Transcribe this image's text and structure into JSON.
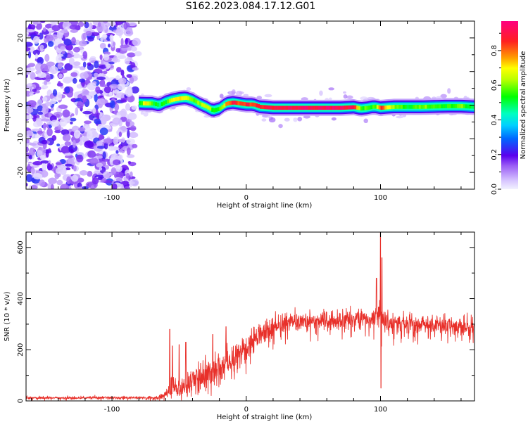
{
  "figure": {
    "title": "S162.2023.084.17.12.G01"
  },
  "colormap": [
    [
      0.0,
      "#f2f2ff"
    ],
    [
      0.05,
      "#d8c6ff"
    ],
    [
      0.14,
      "#9a5cf5"
    ],
    [
      0.2,
      "#5a00ee"
    ],
    [
      0.3,
      "#0066ff"
    ],
    [
      0.38,
      "#00d0ff"
    ],
    [
      0.45,
      "#00ffc0"
    ],
    [
      0.55,
      "#00ff00"
    ],
    [
      0.65,
      "#b8ff00"
    ],
    [
      0.72,
      "#ffff00"
    ],
    [
      0.78,
      "#ffa000"
    ],
    [
      0.88,
      "#ff2020"
    ],
    [
      1.0,
      "#ff0080"
    ]
  ],
  "chart_data": [
    {
      "type": "heatmap",
      "title": "",
      "xlabel": "Height of straight line (km)",
      "ylabel": "Frequency (Hz)",
      "xlim": [
        -164,
        170
      ],
      "ylim": [
        -25,
        25
      ],
      "xticks": [
        -100,
        0,
        100
      ],
      "yticks": [
        -20,
        -10,
        0,
        10,
        20
      ],
      "colorbar": {
        "label": "Normalized spectral amplitude",
        "range": [
          0,
          0.97
        ],
        "ticks": [
          0.0,
          0.2,
          0.4,
          0.6,
          0.8
        ]
      },
      "noise_region_x": [
        -164,
        -80
      ],
      "ridge": {
        "name": "",
        "x": [
          -80,
          -75,
          -70,
          -65,
          -60,
          -55,
          -50,
          -45,
          -40,
          -35,
          -30,
          -25,
          -20,
          -15,
          -10,
          -5,
          0,
          5,
          10,
          20,
          30,
          40,
          50,
          60,
          70,
          80,
          85,
          90,
          95,
          100,
          110,
          120,
          130,
          140,
          150,
          160,
          170
        ],
        "freq": [
          0.6,
          0.5,
          0.5,
          0,
          1.0,
          1.6,
          2.0,
          2.2,
          1.5,
          0.4,
          -0.5,
          -1.6,
          -1.0,
          0.5,
          0.8,
          0.5,
          0.2,
          0.2,
          -0.5,
          -0.8,
          -0.8,
          -0.8,
          -0.8,
          -0.8,
          -0.8,
          -0.6,
          -1.0,
          -0.8,
          -0.4,
          -0.8,
          -0.5,
          -0.5,
          -0.5,
          -0.4,
          -0.3,
          -0.3,
          -0.5
        ],
        "amplitude": [
          0.55,
          0.75,
          0.55,
          0.5,
          0.55,
          0.7,
          0.75,
          0.7,
          0.6,
          0.65,
          0.7,
          0.55,
          0.6,
          0.8,
          0.9,
          0.85,
          0.9,
          0.85,
          0.9,
          0.92,
          0.92,
          0.95,
          0.95,
          0.95,
          0.95,
          0.9,
          0.55,
          0.6,
          0.55,
          0.85,
          0.6,
          0.55,
          0.6,
          0.6,
          0.55,
          0.6,
          0.5
        ]
      }
    },
    {
      "type": "line",
      "title": "",
      "xlabel": "Height of straight line (km)",
      "ylabel": "SNR (10 * v/v)",
      "xlim": [
        -164,
        170
      ],
      "ylim": [
        0,
        660
      ],
      "xticks": [
        -100,
        0,
        100
      ],
      "yticks": [
        0,
        200,
        400,
        600
      ],
      "series": [
        {
          "name": "",
          "color": "#e8302a",
          "x": [
            -164,
            -150,
            -130,
            -110,
            -90,
            -75,
            -65,
            -58,
            -55,
            -52,
            -50,
            -45,
            -40,
            -35,
            -30,
            -25,
            -20,
            -15,
            -10,
            -5,
            0,
            5,
            10,
            15,
            20,
            25,
            30,
            40,
            50,
            60,
            70,
            80,
            90,
            95,
            98,
            100,
            102,
            105,
            110,
            120,
            130,
            140,
            150,
            160,
            170
          ],
          "y_mean": [
            12,
            12,
            12,
            12,
            12,
            12,
            12,
            35,
            50,
            55,
            45,
            60,
            80,
            100,
            110,
            120,
            130,
            145,
            160,
            180,
            200,
            230,
            255,
            270,
            285,
            300,
            305,
            310,
            310,
            312,
            315,
            318,
            318,
            320,
            330,
            340,
            320,
            310,
            300,
            300,
            298,
            295,
            292,
            290,
            290
          ],
          "noise": [
            5,
            5,
            5,
            5,
            5,
            5,
            6,
            25,
            45,
            40,
            30,
            45,
            55,
            60,
            60,
            60,
            60,
            60,
            60,
            55,
            50,
            45,
            40,
            40,
            40,
            40,
            38,
            35,
            35,
            35,
            35,
            35,
            35,
            40,
            50,
            60,
            45,
            40,
            38,
            35,
            35,
            35,
            35,
            35,
            35
          ],
          "spikes": [
            {
              "x": -57,
              "y": 280
            },
            {
              "x": -55,
              "y": 215
            },
            {
              "x": -50,
              "y": 220
            },
            {
              "x": -45,
              "y": 230
            },
            {
              "x": -25,
              "y": 260
            },
            {
              "x": -15,
              "y": 290
            },
            {
              "x": 97,
              "y": 480
            },
            {
              "x": 100,
              "y": 660
            },
            {
              "x": 100.4,
              "y": 50
            },
            {
              "x": 101,
              "y": 560
            }
          ]
        }
      ]
    }
  ]
}
